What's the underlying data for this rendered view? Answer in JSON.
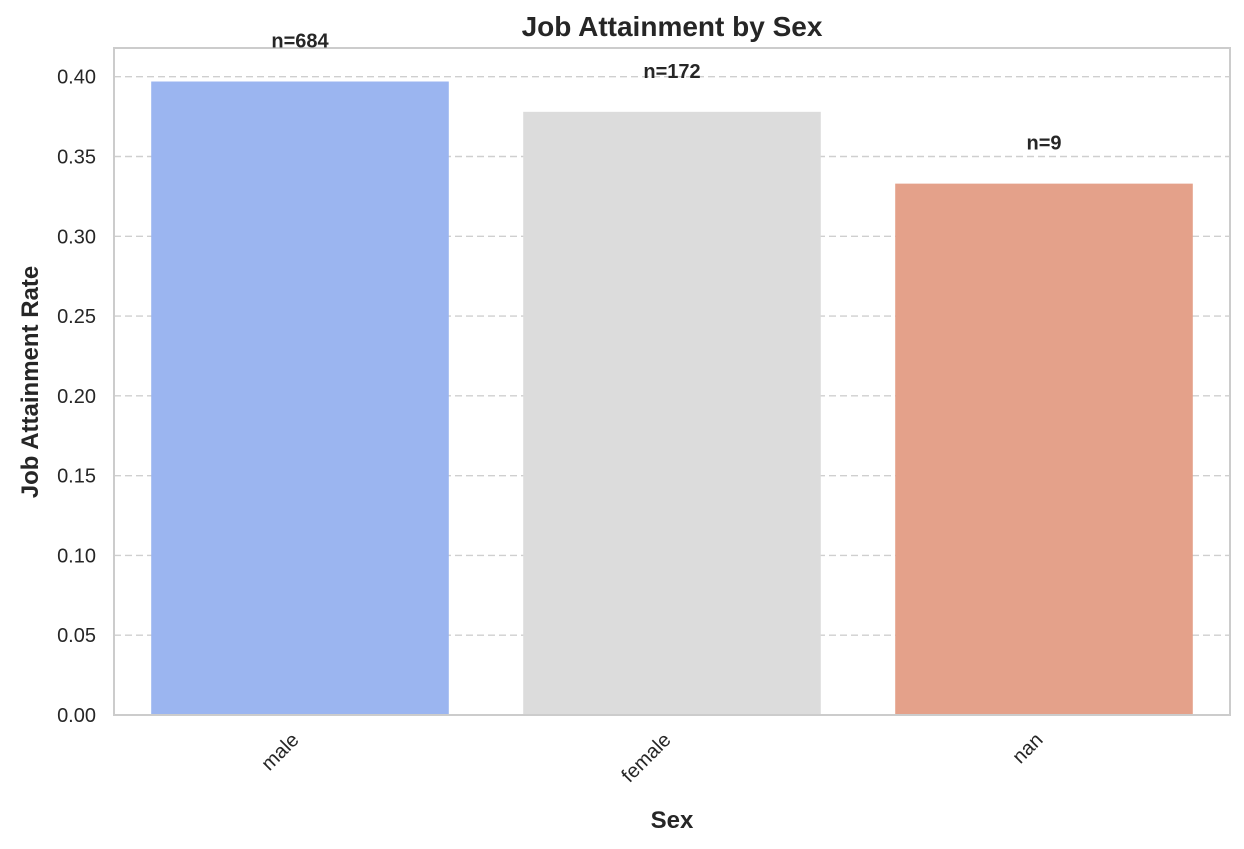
{
  "chart_data": {
    "type": "bar",
    "title": "Job Attainment by Sex",
    "xlabel": "Sex",
    "ylabel": "Job Attainment Rate",
    "categories": [
      "male",
      "female",
      "nan"
    ],
    "values": [
      0.397,
      0.378,
      0.333
    ],
    "counts": [
      "n=684",
      "n=172",
      "n=9"
    ],
    "colors": [
      "#9bb5f0",
      "#dcdcdc",
      "#e4a18a"
    ],
    "ylim": [
      0,
      0.418
    ],
    "yticks": [
      0.0,
      0.05,
      0.1,
      0.15,
      0.2,
      0.25,
      0.3,
      0.35,
      0.4
    ],
    "ytick_labels": [
      "0.00",
      "0.05",
      "0.10",
      "0.15",
      "0.20",
      "0.25",
      "0.30",
      "0.35",
      "0.40"
    ],
    "grid": "y, dashed",
    "xtick_rotation": 45
  }
}
